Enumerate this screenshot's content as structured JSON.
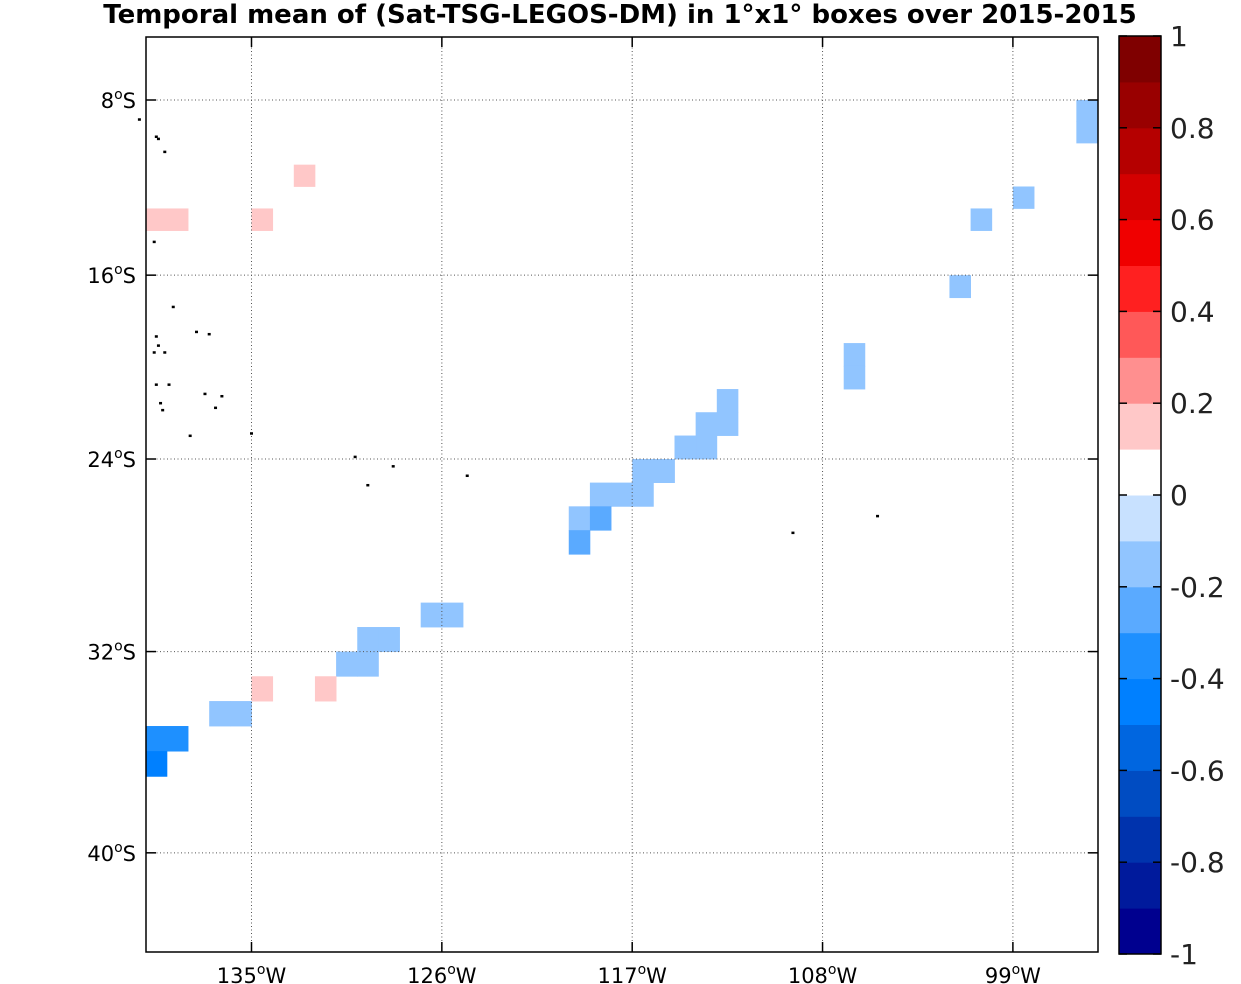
{
  "chart_data": {
    "type": "heatmap",
    "title": "Temporal mean of (Sat-TSG-LEGOS-DM) in 1°x1° boxes over 2015-2015",
    "xlabel": "",
    "ylabel": "",
    "lon_range": [
      -140,
      -95
    ],
    "lat_range": [
      -44,
      -5.5
    ],
    "grid": true,
    "x_ticks": [
      {
        "value": -135,
        "num": "135",
        "suf": "W"
      },
      {
        "value": -126,
        "num": "126",
        "suf": "W"
      },
      {
        "value": -117,
        "num": "117",
        "suf": "W"
      },
      {
        "value": -108,
        "num": "108",
        "suf": "W"
      },
      {
        "value": -99,
        "num": "99",
        "suf": "W"
      }
    ],
    "y_ticks": [
      {
        "value": -8,
        "num": "8",
        "suf": "S"
      },
      {
        "value": -16,
        "num": "16",
        "suf": "S"
      },
      {
        "value": -24,
        "num": "24",
        "suf": "S"
      },
      {
        "value": -32,
        "num": "32",
        "suf": "S"
      },
      {
        "value": -40,
        "num": "40",
        "suf": "S"
      }
    ],
    "colorbar": {
      "range": [
        -1,
        1
      ],
      "step": 0.1,
      "colors": [
        "#00008f",
        "#001a9c",
        "#0033ad",
        "#004cc2",
        "#0066e0",
        "#0080ff",
        "#1e90ff",
        "#5aaaff",
        "#91c5ff",
        "#c8e1ff",
        "#ffffff",
        "#ffc8c8",
        "#ff8f8f",
        "#ff5858",
        "#ff2020",
        "#f00000",
        "#d40000",
        "#b50000",
        "#990000",
        "#7f0000"
      ],
      "tick_labels": [
        {
          "value": 1,
          "label": "1"
        },
        {
          "value": 0.8,
          "label": "0.8"
        },
        {
          "value": 0.6,
          "label": "0.6"
        },
        {
          "value": 0.4,
          "label": "0.4"
        },
        {
          "value": 0.2,
          "label": "0.2"
        },
        {
          "value": 0,
          "label": "0"
        },
        {
          "value": -0.2,
          "label": "-0.2"
        },
        {
          "value": -0.4,
          "label": "-0.4"
        },
        {
          "value": -0.6,
          "label": "-0.6"
        },
        {
          "value": -0.8,
          "label": "-0.8"
        },
        {
          "value": -1,
          "label": "-1"
        }
      ]
    },
    "cells": [
      {
        "lon": -95.5,
        "lat": -8.5,
        "value": -0.15
      },
      {
        "lon": -95.5,
        "lat": -9.5,
        "value": -0.15
      },
      {
        "lon": -98.5,
        "lat": -12.5,
        "value": -0.15
      },
      {
        "lon": -100.5,
        "lat": -13.5,
        "value": -0.15
      },
      {
        "lon": -101.5,
        "lat": -16.5,
        "value": -0.15
      },
      {
        "lon": -132.5,
        "lat": -11.5,
        "value": 0.15
      },
      {
        "lon": -134.5,
        "lat": -13.5,
        "value": 0.15
      },
      {
        "lon": -139.5,
        "lat": -13.5,
        "value": 0.15
      },
      {
        "lon": -138.5,
        "lat": -13.5,
        "value": 0.15
      },
      {
        "lon": -106.5,
        "lat": -19.5,
        "value": -0.15
      },
      {
        "lon": -106.5,
        "lat": -20.5,
        "value": -0.15
      },
      {
        "lon": -112.5,
        "lat": -21.5,
        "value": -0.15
      },
      {
        "lon": -112.5,
        "lat": -22.5,
        "value": -0.15
      },
      {
        "lon": -113.5,
        "lat": -22.5,
        "value": -0.15
      },
      {
        "lon": -113.5,
        "lat": -23.5,
        "value": -0.15
      },
      {
        "lon": -114.5,
        "lat": -23.5,
        "value": -0.15
      },
      {
        "lon": -115.5,
        "lat": -24.5,
        "value": -0.15
      },
      {
        "lon": -116.5,
        "lat": -24.5,
        "value": -0.15
      },
      {
        "lon": -116.5,
        "lat": -25.5,
        "value": -0.15
      },
      {
        "lon": -117.5,
        "lat": -25.5,
        "value": -0.15
      },
      {
        "lon": -118.5,
        "lat": -25.5,
        "value": -0.15
      },
      {
        "lon": -119.5,
        "lat": -26.5,
        "value": -0.15
      },
      {
        "lon": -118.5,
        "lat": -26.5,
        "value": -0.25
      },
      {
        "lon": -119.5,
        "lat": -27.5,
        "value": -0.25
      },
      {
        "lon": -125.5,
        "lat": -30.5,
        "value": -0.15
      },
      {
        "lon": -126.5,
        "lat": -30.5,
        "value": -0.15
      },
      {
        "lon": -128.5,
        "lat": -31.5,
        "value": -0.15
      },
      {
        "lon": -129.5,
        "lat": -31.5,
        "value": -0.15
      },
      {
        "lon": -129.5,
        "lat": -32.5,
        "value": -0.15
      },
      {
        "lon": -130.5,
        "lat": -32.5,
        "value": -0.15
      },
      {
        "lon": -131.5,
        "lat": -33.5,
        "value": 0.15
      },
      {
        "lon": -134.5,
        "lat": -33.5,
        "value": 0.15
      },
      {
        "lon": -135.5,
        "lat": -34.5,
        "value": -0.15
      },
      {
        "lon": -136.5,
        "lat": -34.5,
        "value": -0.15
      },
      {
        "lon": -139.5,
        "lat": -35.5,
        "value": -0.35
      },
      {
        "lon": -138.5,
        "lat": -35.5,
        "value": -0.35
      },
      {
        "lon": -139.5,
        "lat": -36.5,
        "value": -0.45
      }
    ],
    "land": [
      {
        "lon": -140.3,
        "lat": -8.9
      },
      {
        "lon": -139.5,
        "lat": -9.7
      },
      {
        "lon": -139.4,
        "lat": -9.8
      },
      {
        "lon": -139.1,
        "lat": -10.4
      },
      {
        "lon": -139.6,
        "lat": -14.5
      },
      {
        "lon": -138.7,
        "lat": -17.4
      },
      {
        "lon": -139.5,
        "lat": -18.7
      },
      {
        "lon": -139.4,
        "lat": -19.1
      },
      {
        "lon": -137.6,
        "lat": -18.5
      },
      {
        "lon": -137.0,
        "lat": -18.6
      },
      {
        "lon": -139.6,
        "lat": -19.4
      },
      {
        "lon": -139.1,
        "lat": -19.4
      },
      {
        "lon": -139.5,
        "lat": -20.8
      },
      {
        "lon": -138.9,
        "lat": -20.8
      },
      {
        "lon": -137.2,
        "lat": -21.2
      },
      {
        "lon": -136.4,
        "lat": -21.3
      },
      {
        "lon": -139.3,
        "lat": -21.6
      },
      {
        "lon": -139.2,
        "lat": -21.9
      },
      {
        "lon": -136.7,
        "lat": -21.8
      },
      {
        "lon": -137.9,
        "lat": -23.0
      },
      {
        "lon": -135.0,
        "lat": -22.9
      },
      {
        "lon": -130.1,
        "lat": -23.9
      },
      {
        "lon": -128.3,
        "lat": -24.3
      },
      {
        "lon": -124.8,
        "lat": -24.7
      },
      {
        "lon": -129.5,
        "lat": -25.1
      },
      {
        "lon": -109.4,
        "lat": -27.1
      },
      {
        "lon": -105.4,
        "lat": -26.4
      }
    ]
  }
}
